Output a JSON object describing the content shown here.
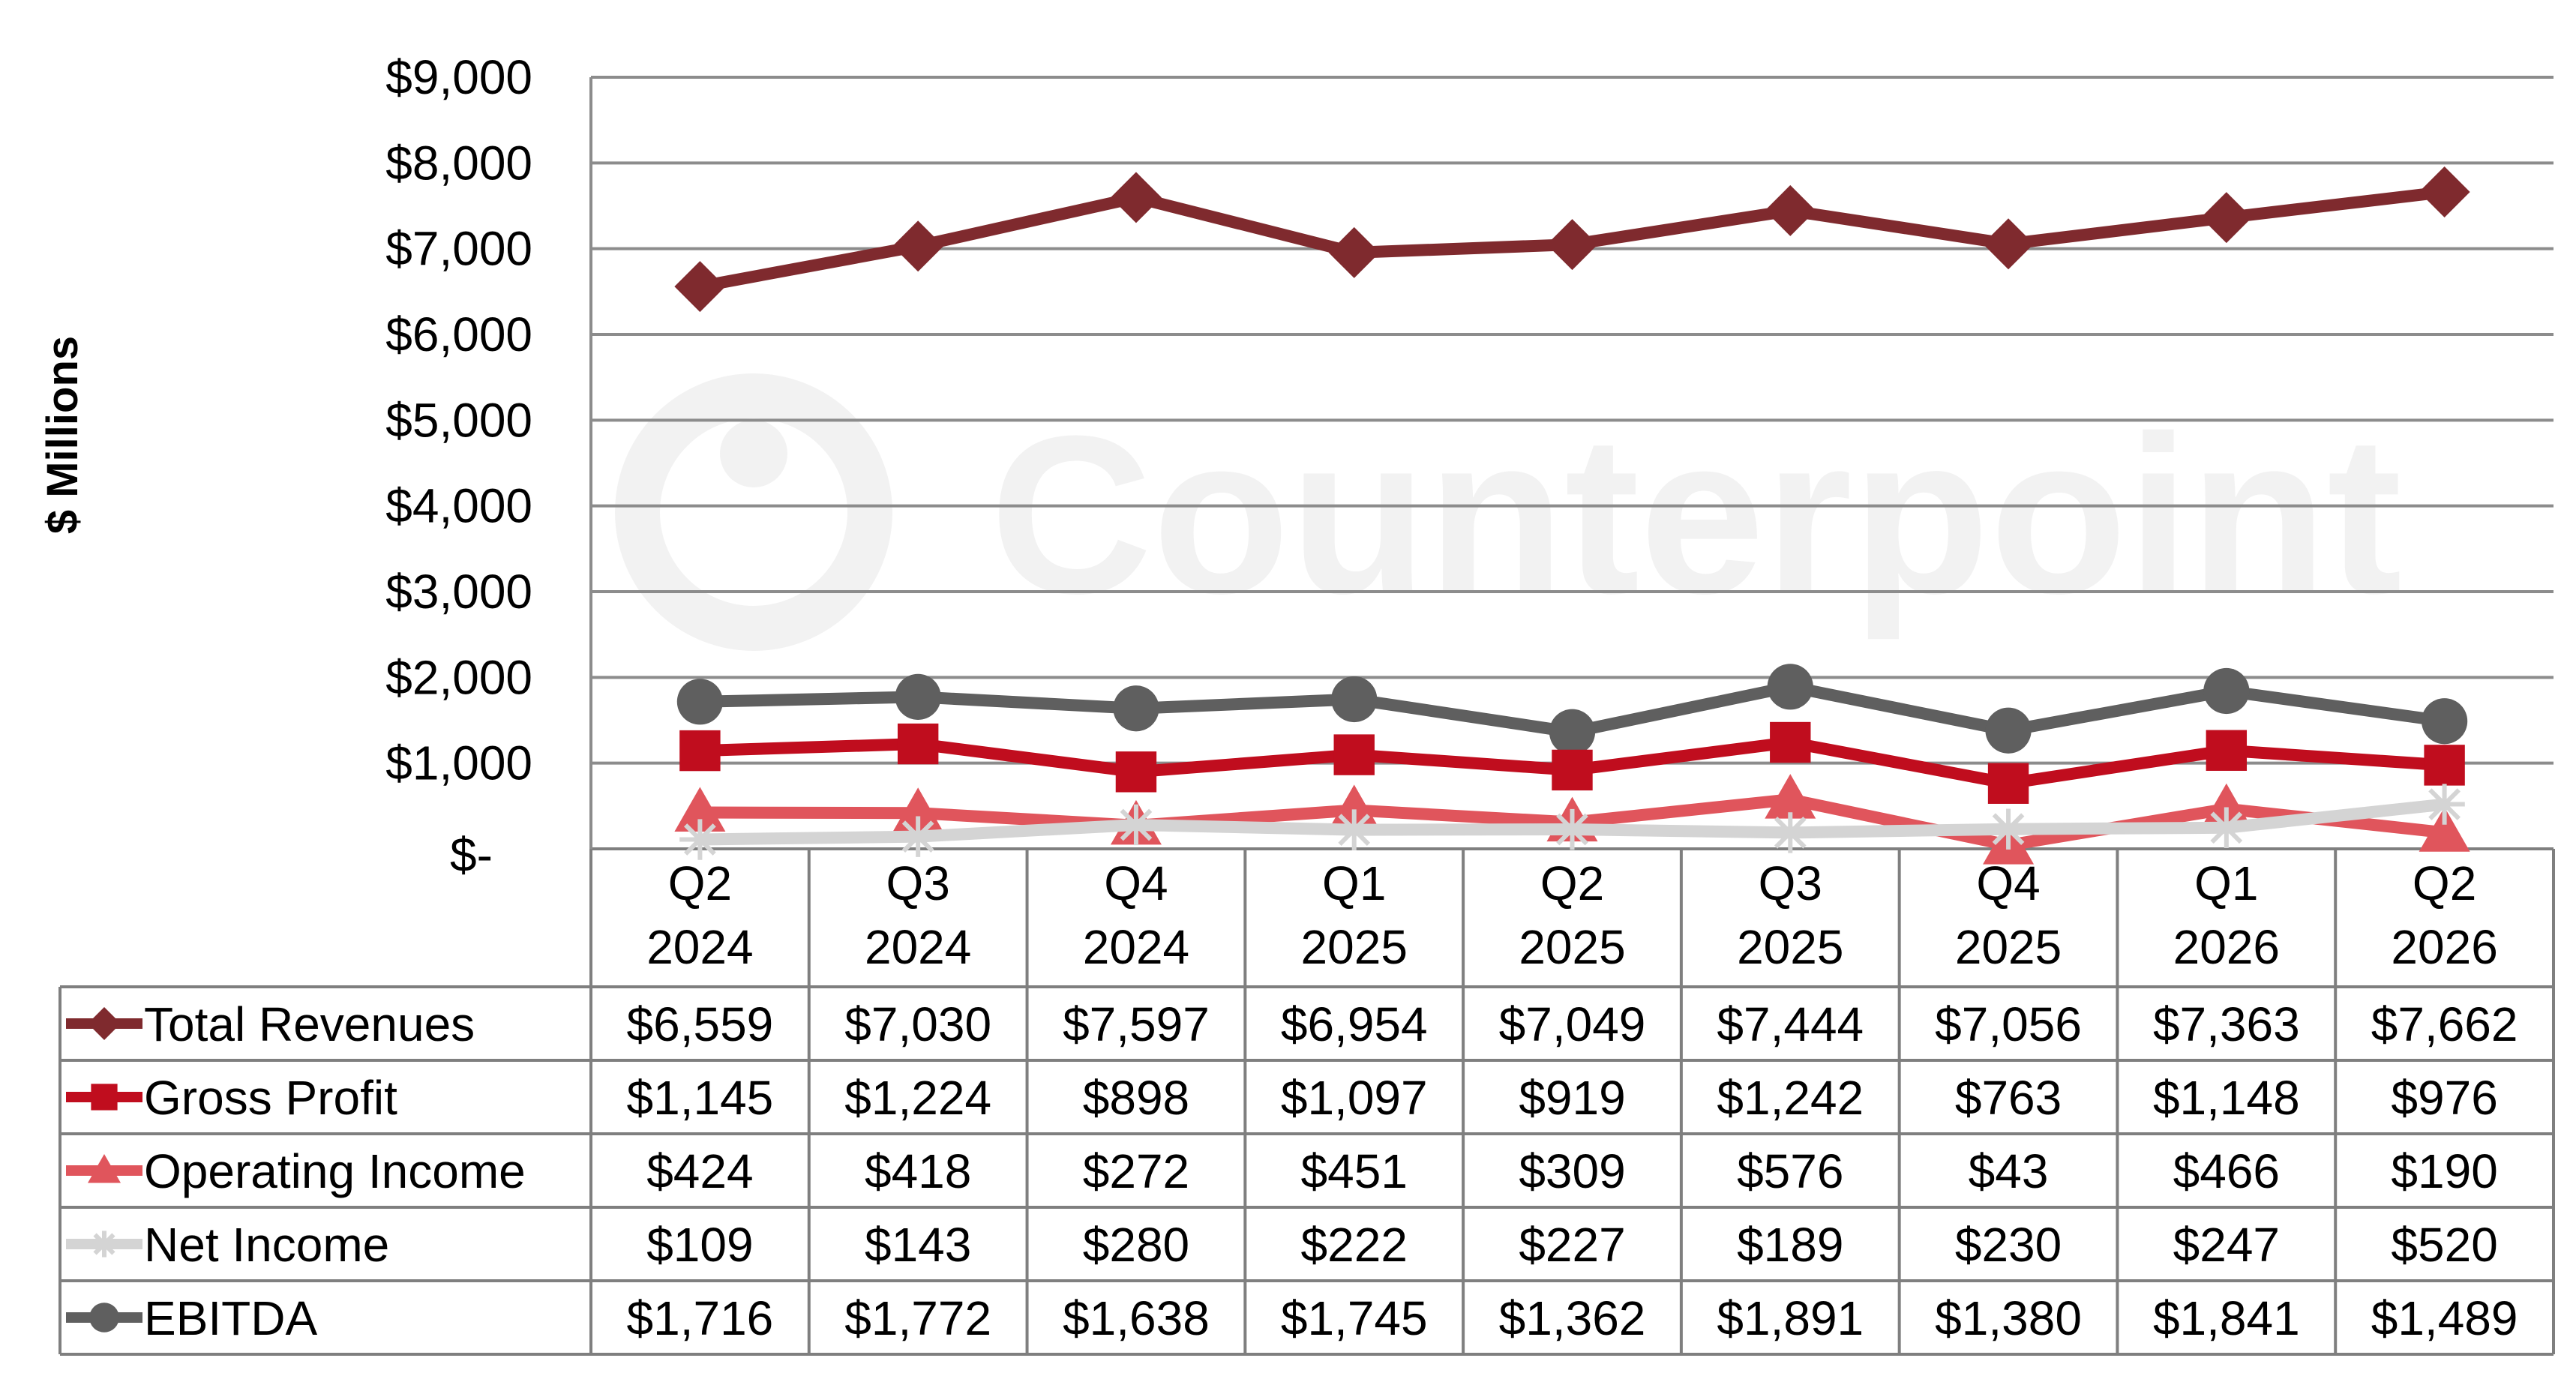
{
  "watermark": "Counterpoint",
  "chart_data": {
    "type": "line",
    "ylabel": "$ Millions",
    "ylim": [
      0,
      9000
    ],
    "yticks": [
      0,
      1000,
      2000,
      3000,
      4000,
      5000,
      6000,
      7000,
      8000,
      9000
    ],
    "ytick_labels": [
      "$-",
      "$1,000",
      "$2,000",
      "$3,000",
      "$4,000",
      "$5,000",
      "$6,000",
      "$7,000",
      "$8,000",
      "$9,000"
    ],
    "grid": true,
    "legend": "data-table",
    "categories": [
      [
        "Q2",
        "2024"
      ],
      [
        "Q3",
        "2024"
      ],
      [
        "Q4",
        "2024"
      ],
      [
        "Q1",
        "2025"
      ],
      [
        "Q2",
        "2025"
      ],
      [
        "Q3",
        "2025"
      ],
      [
        "Q4",
        "2025"
      ],
      [
        "Q1",
        "2026"
      ],
      [
        "Q2",
        "2026"
      ]
    ],
    "series": [
      {
        "name": "Total Revenues",
        "color": "#7f2a2e",
        "marker": "diamond",
        "values": [
          6559,
          7030,
          7597,
          6954,
          7049,
          7444,
          7056,
          7363,
          7662
        ],
        "labels": [
          "$6,559",
          "$7,030",
          "$7,597",
          "$6,954",
          "$7,049",
          "$7,444",
          "$7,056",
          "$7,363",
          "$7,662"
        ]
      },
      {
        "name": "Gross Profit",
        "color": "#c00d1e",
        "marker": "square",
        "values": [
          1145,
          1224,
          898,
          1097,
          919,
          1242,
          763,
          1148,
          976
        ],
        "labels": [
          "$1,145",
          "$1,224",
          "$898",
          "$1,097",
          "$919",
          "$1,242",
          "$763",
          "$1,148",
          "$976"
        ]
      },
      {
        "name": "Operating Income",
        "color": "#e0555c",
        "marker": "triangle",
        "values": [
          424,
          418,
          272,
          451,
          309,
          576,
          43,
          466,
          190
        ],
        "labels": [
          "$424",
          "$418",
          "$272",
          "$451",
          "$309",
          "$576",
          "$43",
          "$466",
          "$190"
        ]
      },
      {
        "name": "Net Income",
        "color": "#d4d4d4",
        "marker": "star",
        "values": [
          109,
          143,
          280,
          222,
          227,
          189,
          230,
          247,
          520
        ],
        "labels": [
          "$109",
          "$143",
          "$280",
          "$222",
          "$227",
          "$189",
          "$230",
          "$247",
          "$520"
        ]
      },
      {
        "name": "EBITDA",
        "color": "#5f5f5f",
        "marker": "circle",
        "values": [
          1716,
          1772,
          1638,
          1745,
          1362,
          1891,
          1380,
          1841,
          1489
        ],
        "labels": [
          "$1,716",
          "$1,772",
          "$1,638",
          "$1,745",
          "$1,362",
          "$1,891",
          "$1,380",
          "$1,841",
          "$1,489"
        ]
      }
    ]
  }
}
